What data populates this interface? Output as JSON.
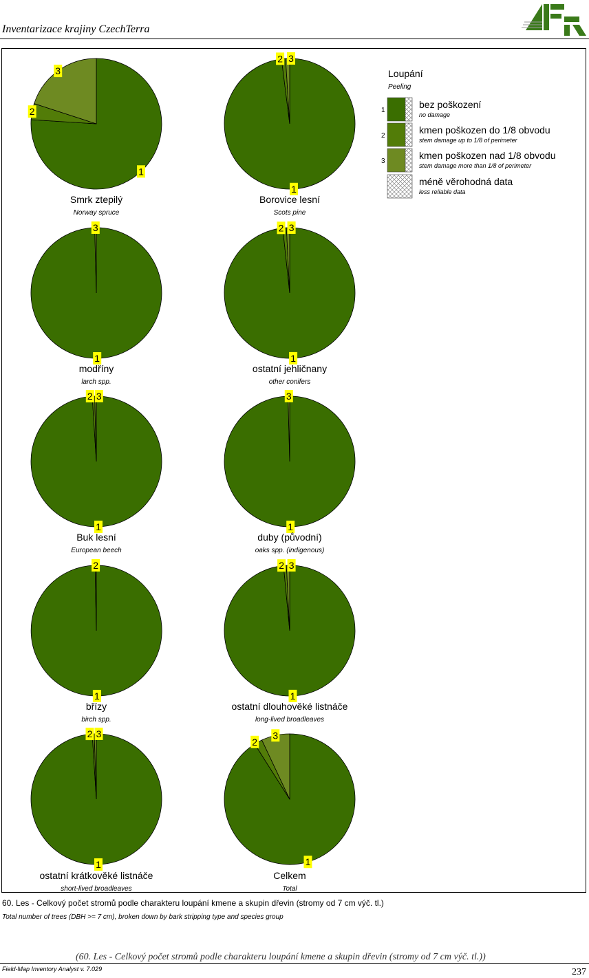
{
  "header": {
    "title": "Inventarizace krajiny CzechTerra",
    "logo_text": "IFER"
  },
  "colors": {
    "c1": "#3a6e00",
    "c2": "#527c08",
    "c3": "#6e8a22",
    "label_bg": "#ffff00"
  },
  "legend": {
    "title": "Loupání",
    "subtitle": "Peeling",
    "items": [
      {
        "code": "1",
        "label": "bez poškození",
        "sublabel": "no damage"
      },
      {
        "code": "2",
        "label": "kmen poškozen do 1/8 obvodu",
        "sublabel": "stem damage up to 1/8 of perimeter"
      },
      {
        "code": "3",
        "label": "kmen poškozen nad 1/8 obvodu",
        "sublabel": "stem damage more than 1/8 of perimeter"
      },
      {
        "code": "",
        "label": "méně věrohodná data",
        "sublabel": "less reliable data"
      }
    ]
  },
  "chart_data": [
    {
      "type": "pie",
      "title": "Smrk ztepilý",
      "subtitle": "Norway spruce",
      "categories": [
        "1",
        "2",
        "3"
      ],
      "values": [
        76,
        4,
        20
      ]
    },
    {
      "type": "pie",
      "title": "Borovice lesní",
      "subtitle": "Scots pine",
      "categories": [
        "1",
        "2",
        "3"
      ],
      "values": [
        98,
        1,
        1
      ]
    },
    {
      "type": "pie",
      "title": "modříny",
      "subtitle": "larch spp.",
      "categories": [
        "1",
        "3"
      ],
      "values": [
        99.6,
        0.4
      ]
    },
    {
      "type": "pie",
      "title": "ostatní jehličnany",
      "subtitle": "other conifers",
      "categories": [
        "1",
        "2",
        "3"
      ],
      "values": [
        98.3,
        0.9,
        0.8
      ]
    },
    {
      "type": "pie",
      "title": "Buk lesní",
      "subtitle": "European beech",
      "categories": [
        "1",
        "2",
        "3"
      ],
      "values": [
        99,
        0.6,
        0.4
      ]
    },
    {
      "type": "pie",
      "title": "duby (původní)",
      "subtitle": "oaks spp. (indigenous)",
      "categories": [
        "1",
        "3"
      ],
      "values": [
        99.6,
        0.4
      ]
    },
    {
      "type": "pie",
      "title": "břízy",
      "subtitle": "birch spp.",
      "categories": [
        "1",
        "2"
      ],
      "values": [
        99.7,
        0.3
      ]
    },
    {
      "type": "pie",
      "title": "ostatní dlouhověké listnáče",
      "subtitle": "long-lived broadleaves",
      "categories": [
        "1",
        "2",
        "3"
      ],
      "values": [
        98.5,
        0.7,
        0.8
      ]
    },
    {
      "type": "pie",
      "title": "ostatní krátkověké listnáče",
      "subtitle": "short-lived broadleaves",
      "categories": [
        "1",
        "2",
        "3"
      ],
      "values": [
        99,
        0.5,
        0.5
      ]
    },
    {
      "type": "pie",
      "title": "Celkem",
      "subtitle": "Total",
      "categories": [
        "1",
        "2",
        "3"
      ],
      "values": [
        91,
        2,
        7
      ]
    }
  ],
  "caption": {
    "cz": "60. Les - Celkový počet stromů podle charakteru loupání kmene a skupin dřevin (stromy od 7 cm výč. tl.)",
    "en": "Total number of trees (DBH >= 7 cm), broken down by bark stripping type and species group",
    "repeat": "(60. Les - Celkový počet stromů podle charakteru loupání kmene a skupin dřevin (stromy od 7 cm výč. tl.))"
  },
  "footer": {
    "software": "Field-Map Inventory Analyst v. 7.029",
    "page": "237"
  }
}
